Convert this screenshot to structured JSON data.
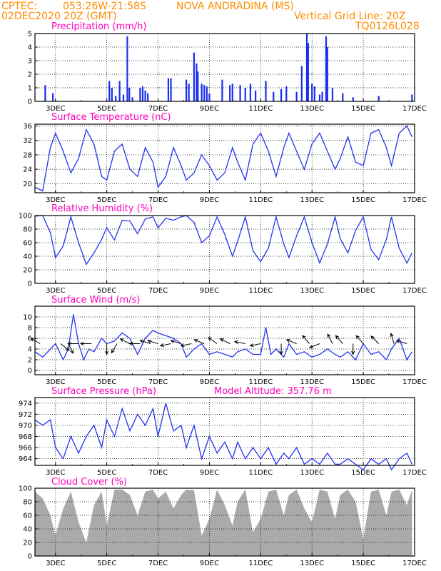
{
  "header": {
    "source": "CPTEC:",
    "coords": "053:26W-21:58S",
    "station": "NOVA ANDRADINA (MS)",
    "run": "02DEC2020 20Z (GMT)",
    "grid_note": "Vertical Grid Line: 20Z",
    "model": "TQ0126L028"
  },
  "colors": {
    "header": "#ff8c00",
    "title": "#ff00bb",
    "series": "#2233ee",
    "cloud": "#aaaaaa",
    "arrow": "#000000"
  },
  "date_ticks": [
    "3DEC",
    "5DEC",
    "7DEC",
    "9DEC",
    "11DEC",
    "13DEC",
    "15DEC",
    "17DEC"
  ],
  "chart_data": [
    {
      "type": "bar",
      "title": "Precipitation (mm/h)",
      "ylim": [
        0,
        5
      ],
      "yticks": [
        0,
        1,
        2,
        3,
        4,
        5
      ],
      "x_range_days": [
        2.2,
        17.0
      ],
      "x": [
        2.6,
        2.9,
        5.1,
        5.2,
        5.35,
        5.5,
        5.65,
        5.8,
        5.88,
        6.0,
        6.3,
        6.4,
        6.5,
        6.6,
        7.4,
        7.5,
        8.1,
        8.2,
        8.4,
        8.5,
        8.55,
        8.7,
        8.8,
        8.9,
        9.0,
        9.5,
        9.8,
        9.9,
        10.2,
        10.4,
        10.6,
        10.8,
        11.2,
        11.5,
        11.8,
        12.0,
        12.4,
        12.6,
        12.8,
        12.85,
        13.0,
        13.1,
        13.3,
        13.4,
        13.55,
        13.6,
        13.8,
        14.2,
        14.6,
        15.6,
        16.9
      ],
      "values": [
        1.2,
        0.6,
        1.5,
        1.0,
        0.4,
        1.5,
        0.5,
        4.8,
        1.0,
        0.3,
        1.0,
        1.1,
        0.8,
        0.6,
        1.7,
        1.7,
        1.6,
        1.3,
        3.6,
        2.8,
        2.2,
        1.3,
        1.2,
        1.1,
        0.6,
        1.6,
        1.2,
        1.3,
        1.2,
        1.0,
        1.3,
        0.8,
        1.5,
        0.7,
        0.9,
        1.1,
        0.7,
        2.6,
        5.0,
        4.3,
        1.3,
        1.1,
        0.5,
        0.7,
        4.8,
        4.0,
        1.0,
        0.6,
        0.3,
        0.4,
        0.5
      ]
    },
    {
      "type": "line",
      "title": "Surface Temperature (nC)",
      "ylim": [
        17.5,
        36.5
      ],
      "yticks": [
        20,
        24,
        28,
        32,
        36
      ],
      "x_range_days": [
        2.2,
        17.0
      ],
      "x": [
        2.2,
        2.5,
        2.8,
        3.0,
        3.3,
        3.6,
        3.9,
        4.2,
        4.5,
        4.8,
        5.0,
        5.3,
        5.6,
        5.9,
        6.2,
        6.5,
        6.8,
        7.0,
        7.3,
        7.6,
        7.9,
        8.1,
        8.4,
        8.7,
        9.0,
        9.3,
        9.6,
        9.9,
        10.1,
        10.4,
        10.7,
        11.0,
        11.3,
        11.6,
        11.9,
        12.1,
        12.4,
        12.7,
        13.0,
        13.3,
        13.6,
        13.9,
        14.1,
        14.4,
        14.7,
        15.0,
        15.3,
        15.6,
        15.9,
        16.1,
        16.4,
        16.7,
        16.9
      ],
      "values": [
        19,
        18,
        30,
        34,
        29,
        23,
        27,
        35,
        31,
        22,
        21,
        29,
        31,
        24,
        22,
        30,
        26,
        19,
        22,
        30,
        25,
        21,
        23,
        28,
        25,
        21,
        23,
        30,
        26,
        21,
        31,
        34,
        29,
        22,
        30,
        34,
        29,
        24,
        31,
        34,
        29,
        24,
        27,
        33,
        26,
        25,
        34,
        35,
        30,
        25,
        34,
        36,
        33
      ]
    },
    {
      "type": "line",
      "title": "Relative Humidity (%)",
      "ylim": [
        0,
        100
      ],
      "yticks": [
        0,
        20,
        40,
        60,
        80,
        100
      ],
      "x_range_days": [
        2.2,
        17.0
      ],
      "x": [
        2.2,
        2.5,
        2.8,
        3.0,
        3.3,
        3.6,
        3.9,
        4.2,
        4.5,
        4.8,
        5.0,
        5.3,
        5.6,
        5.9,
        6.2,
        6.5,
        6.8,
        7.0,
        7.3,
        7.6,
        7.9,
        8.1,
        8.4,
        8.7,
        9.0,
        9.3,
        9.6,
        9.9,
        10.1,
        10.4,
        10.7,
        11.0,
        11.3,
        11.6,
        11.9,
        12.1,
        12.4,
        12.7,
        13.0,
        13.3,
        13.6,
        13.9,
        14.1,
        14.4,
        14.7,
        15.0,
        15.3,
        15.6,
        15.9,
        16.1,
        16.4,
        16.7,
        16.9
      ],
      "values": [
        99,
        100,
        75,
        38,
        55,
        98,
        60,
        28,
        45,
        65,
        82,
        64,
        93,
        92,
        73,
        95,
        98,
        82,
        96,
        93,
        98,
        100,
        90,
        60,
        70,
        98,
        72,
        40,
        62,
        98,
        48,
        32,
        52,
        98,
        58,
        38,
        70,
        98,
        60,
        30,
        58,
        98,
        66,
        45,
        78,
        98,
        50,
        35,
        65,
        98,
        52,
        30,
        45
      ]
    },
    {
      "type": "line",
      "title": "Surface Wind (m/s)",
      "ylim": [
        -0.8,
        12
      ],
      "yticks": [
        0,
        2,
        4,
        6,
        8,
        10
      ],
      "x_range_days": [
        2.2,
        17.0
      ],
      "x": [
        2.2,
        2.5,
        2.8,
        3.0,
        3.3,
        3.5,
        3.7,
        3.9,
        4.1,
        4.3,
        4.5,
        4.8,
        5.0,
        5.3,
        5.6,
        5.9,
        6.2,
        6.5,
        6.8,
        7.0,
        7.3,
        7.6,
        7.9,
        8.1,
        8.4,
        8.7,
        9.0,
        9.3,
        9.6,
        9.9,
        10.1,
        10.4,
        10.7,
        11.0,
        11.2,
        11.4,
        11.6,
        11.9,
        12.1,
        12.4,
        12.7,
        13.0,
        13.3,
        13.6,
        13.9,
        14.1,
        14.4,
        14.7,
        15.0,
        15.3,
        15.6,
        15.9,
        16.1,
        16.4,
        16.7,
        16.9
      ],
      "values": [
        3.5,
        2.5,
        4,
        5,
        2,
        4,
        10.5,
        5,
        2,
        4,
        3.5,
        6,
        5,
        5.5,
        7,
        6,
        3,
        6,
        7.5,
        7,
        6.5,
        6,
        5,
        2.5,
        4,
        5,
        3,
        3.5,
        3,
        2.5,
        3.5,
        4,
        3,
        3,
        8,
        3,
        4,
        2.5,
        5,
        3,
        3.5,
        2.5,
        3,
        4,
        3,
        2.5,
        3.5,
        2,
        5,
        3,
        3.5,
        2,
        4,
        6,
        2,
        3.5
      ],
      "arrows": {
        "x": [
          2.4,
          3.2,
          3.5,
          3.9,
          4.4,
          5.0,
          5.4,
          5.9,
          6.3,
          6.7,
          7.0,
          7.5,
          7.9,
          8.3,
          8.8,
          9.3,
          9.8,
          10.4,
          11.0,
          11.8,
          12.4,
          12.9,
          13.3,
          13.8,
          14.2,
          14.6,
          15.0,
          15.6,
          16.2,
          16.7
        ],
        "u": [
          1,
          -1,
          -0.5,
          1,
          0.5,
          0,
          0.3,
          1,
          1,
          1,
          1,
          1,
          1,
          1,
          1,
          1,
          1,
          1,
          1,
          0,
          1,
          0.6,
          1,
          0.5,
          0.7,
          0,
          0.7,
          0.8,
          0.3,
          1
        ],
        "v": [
          -0.6,
          0.8,
          1,
          0,
          0,
          1,
          0.5,
          -0.5,
          0,
          -0.3,
          -0.3,
          0.2,
          -0.3,
          0.2,
          -0.4,
          -0.7,
          -0.5,
          -0.2,
          0.2,
          1,
          -0.4,
          -0.7,
          0.4,
          -1,
          -0.8,
          1,
          -0.8,
          -0.8,
          -1,
          -0.3
        ]
      }
    },
    {
      "type": "line",
      "title": "Surface Pressure (hPa)",
      "subtitle": "Model Altitude: 357.76 m",
      "ylim": [
        962.8,
        975
      ],
      "yticks": [
        964,
        966,
        968,
        970,
        972,
        974
      ],
      "x_range_days": [
        2.2,
        17.0
      ],
      "x": [
        2.2,
        2.5,
        2.8,
        3.0,
        3.3,
        3.6,
        3.9,
        4.2,
        4.5,
        4.8,
        5.0,
        5.3,
        5.6,
        5.9,
        6.2,
        6.5,
        6.8,
        7.0,
        7.3,
        7.6,
        7.9,
        8.1,
        8.4,
        8.7,
        9.0,
        9.3,
        9.6,
        9.9,
        10.1,
        10.4,
        10.7,
        11.0,
        11.3,
        11.6,
        11.9,
        12.1,
        12.4,
        12.7,
        13.0,
        13.3,
        13.6,
        13.9,
        14.1,
        14.4,
        14.7,
        15.0,
        15.3,
        15.6,
        15.9,
        16.1,
        16.4,
        16.7,
        16.9
      ],
      "values": [
        971,
        970,
        971,
        966,
        964,
        968,
        965,
        968,
        970,
        966,
        971,
        968,
        973,
        969,
        972,
        970,
        973,
        968,
        974,
        969,
        970,
        966,
        970,
        964,
        968,
        965,
        967,
        964,
        967,
        964,
        966,
        964,
        966,
        963,
        965,
        964,
        966,
        963,
        964,
        963,
        965,
        963,
        963,
        964,
        963,
        962,
        964,
        963,
        964,
        962,
        964,
        965,
        963
      ]
    },
    {
      "type": "area",
      "title": "Cloud Cover (%)",
      "ylim": [
        0,
        100
      ],
      "yticks": [
        0,
        20,
        40,
        60,
        80,
        100
      ],
      "x_range_days": [
        2.2,
        17.0
      ],
      "x": [
        2.2,
        2.5,
        2.8,
        3.0,
        3.3,
        3.6,
        3.9,
        4.2,
        4.5,
        4.8,
        5.0,
        5.3,
        5.6,
        5.9,
        6.2,
        6.5,
        6.8,
        7.0,
        7.3,
        7.6,
        7.9,
        8.1,
        8.4,
        8.7,
        9.0,
        9.3,
        9.6,
        9.9,
        10.1,
        10.4,
        10.7,
        11.0,
        11.3,
        11.6,
        11.9,
        12.1,
        12.4,
        12.7,
        13.0,
        13.3,
        13.6,
        13.9,
        14.1,
        14.4,
        14.7,
        15.0,
        15.3,
        15.6,
        15.9,
        16.1,
        16.4,
        16.7,
        16.9
      ],
      "values": [
        95,
        85,
        60,
        30,
        70,
        95,
        50,
        20,
        75,
        95,
        45,
        98,
        98,
        90,
        60,
        95,
        98,
        85,
        95,
        70,
        90,
        98,
        97,
        30,
        55,
        98,
        75,
        45,
        80,
        98,
        35,
        55,
        95,
        98,
        60,
        90,
        98,
        70,
        50,
        98,
        95,
        55,
        90,
        98,
        80,
        25,
        95,
        98,
        60,
        95,
        98,
        75,
        98
      ]
    }
  ]
}
